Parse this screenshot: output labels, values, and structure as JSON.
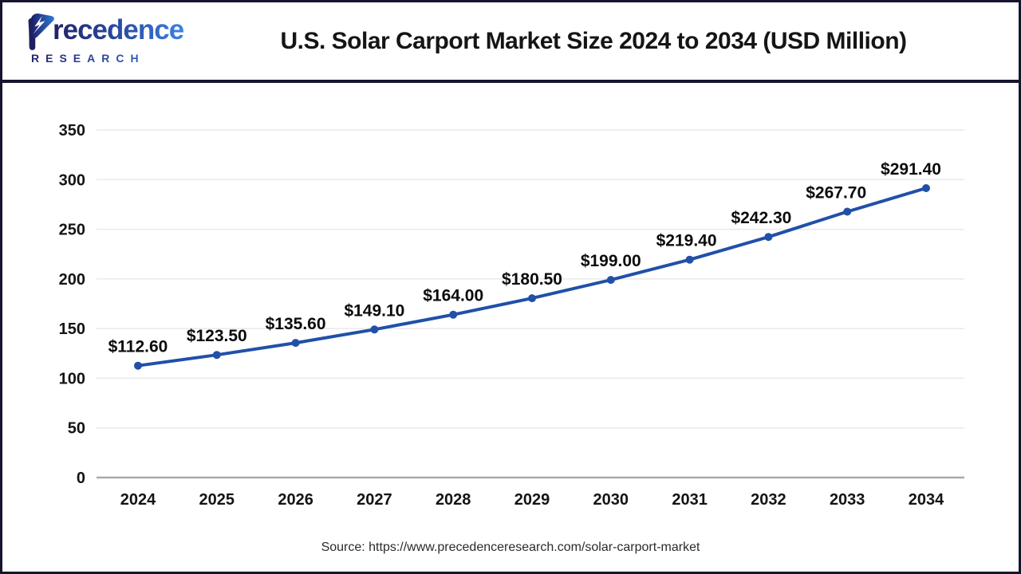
{
  "header": {
    "logo": {
      "brand": "Precedence",
      "subtitle": "RESEARCH"
    },
    "title": "U.S. Solar Carport Market Size 2024 to 2034 (USD Million)"
  },
  "chart_data": {
    "type": "line",
    "title": "U.S. Solar Carport Market Size 2024 to 2034 (USD Million)",
    "categories": [
      "2024",
      "2025",
      "2026",
      "2027",
      "2028",
      "2029",
      "2030",
      "2031",
      "2032",
      "2033",
      "2034"
    ],
    "series": [
      {
        "name": "U.S. Solar Carport Market Size",
        "values": [
          112.6,
          123.5,
          135.6,
          149.1,
          164.0,
          180.5,
          199.0,
          219.4,
          242.3,
          267.7,
          291.4
        ],
        "labels": [
          "$112.60",
          "$123.50",
          "$135.60",
          "$149.10",
          "$164.00",
          "$180.50",
          "$199.00",
          "$219.40",
          "$242.30",
          "$267.70",
          "$291.40"
        ]
      }
    ],
    "unit": "USD Million",
    "xlabel": "",
    "ylabel": "",
    "ylim": [
      0,
      350
    ],
    "yticks": [
      0,
      50,
      100,
      150,
      200,
      250,
      300,
      350
    ],
    "grid": "horizontal",
    "legend_position": "none",
    "line_color": "#2050a8",
    "marker": "circle"
  },
  "footer": {
    "source": "Source: https://www.precedenceresearch.com/solar-carport-market"
  },
  "colors": {
    "line": "#2050a8",
    "logo_gradient_start": "#232168",
    "logo_gradient_end": "#3b82e0",
    "frame": "#15152f",
    "gridline": "#e9e9e9",
    "axis_line": "#aaaaaa"
  }
}
